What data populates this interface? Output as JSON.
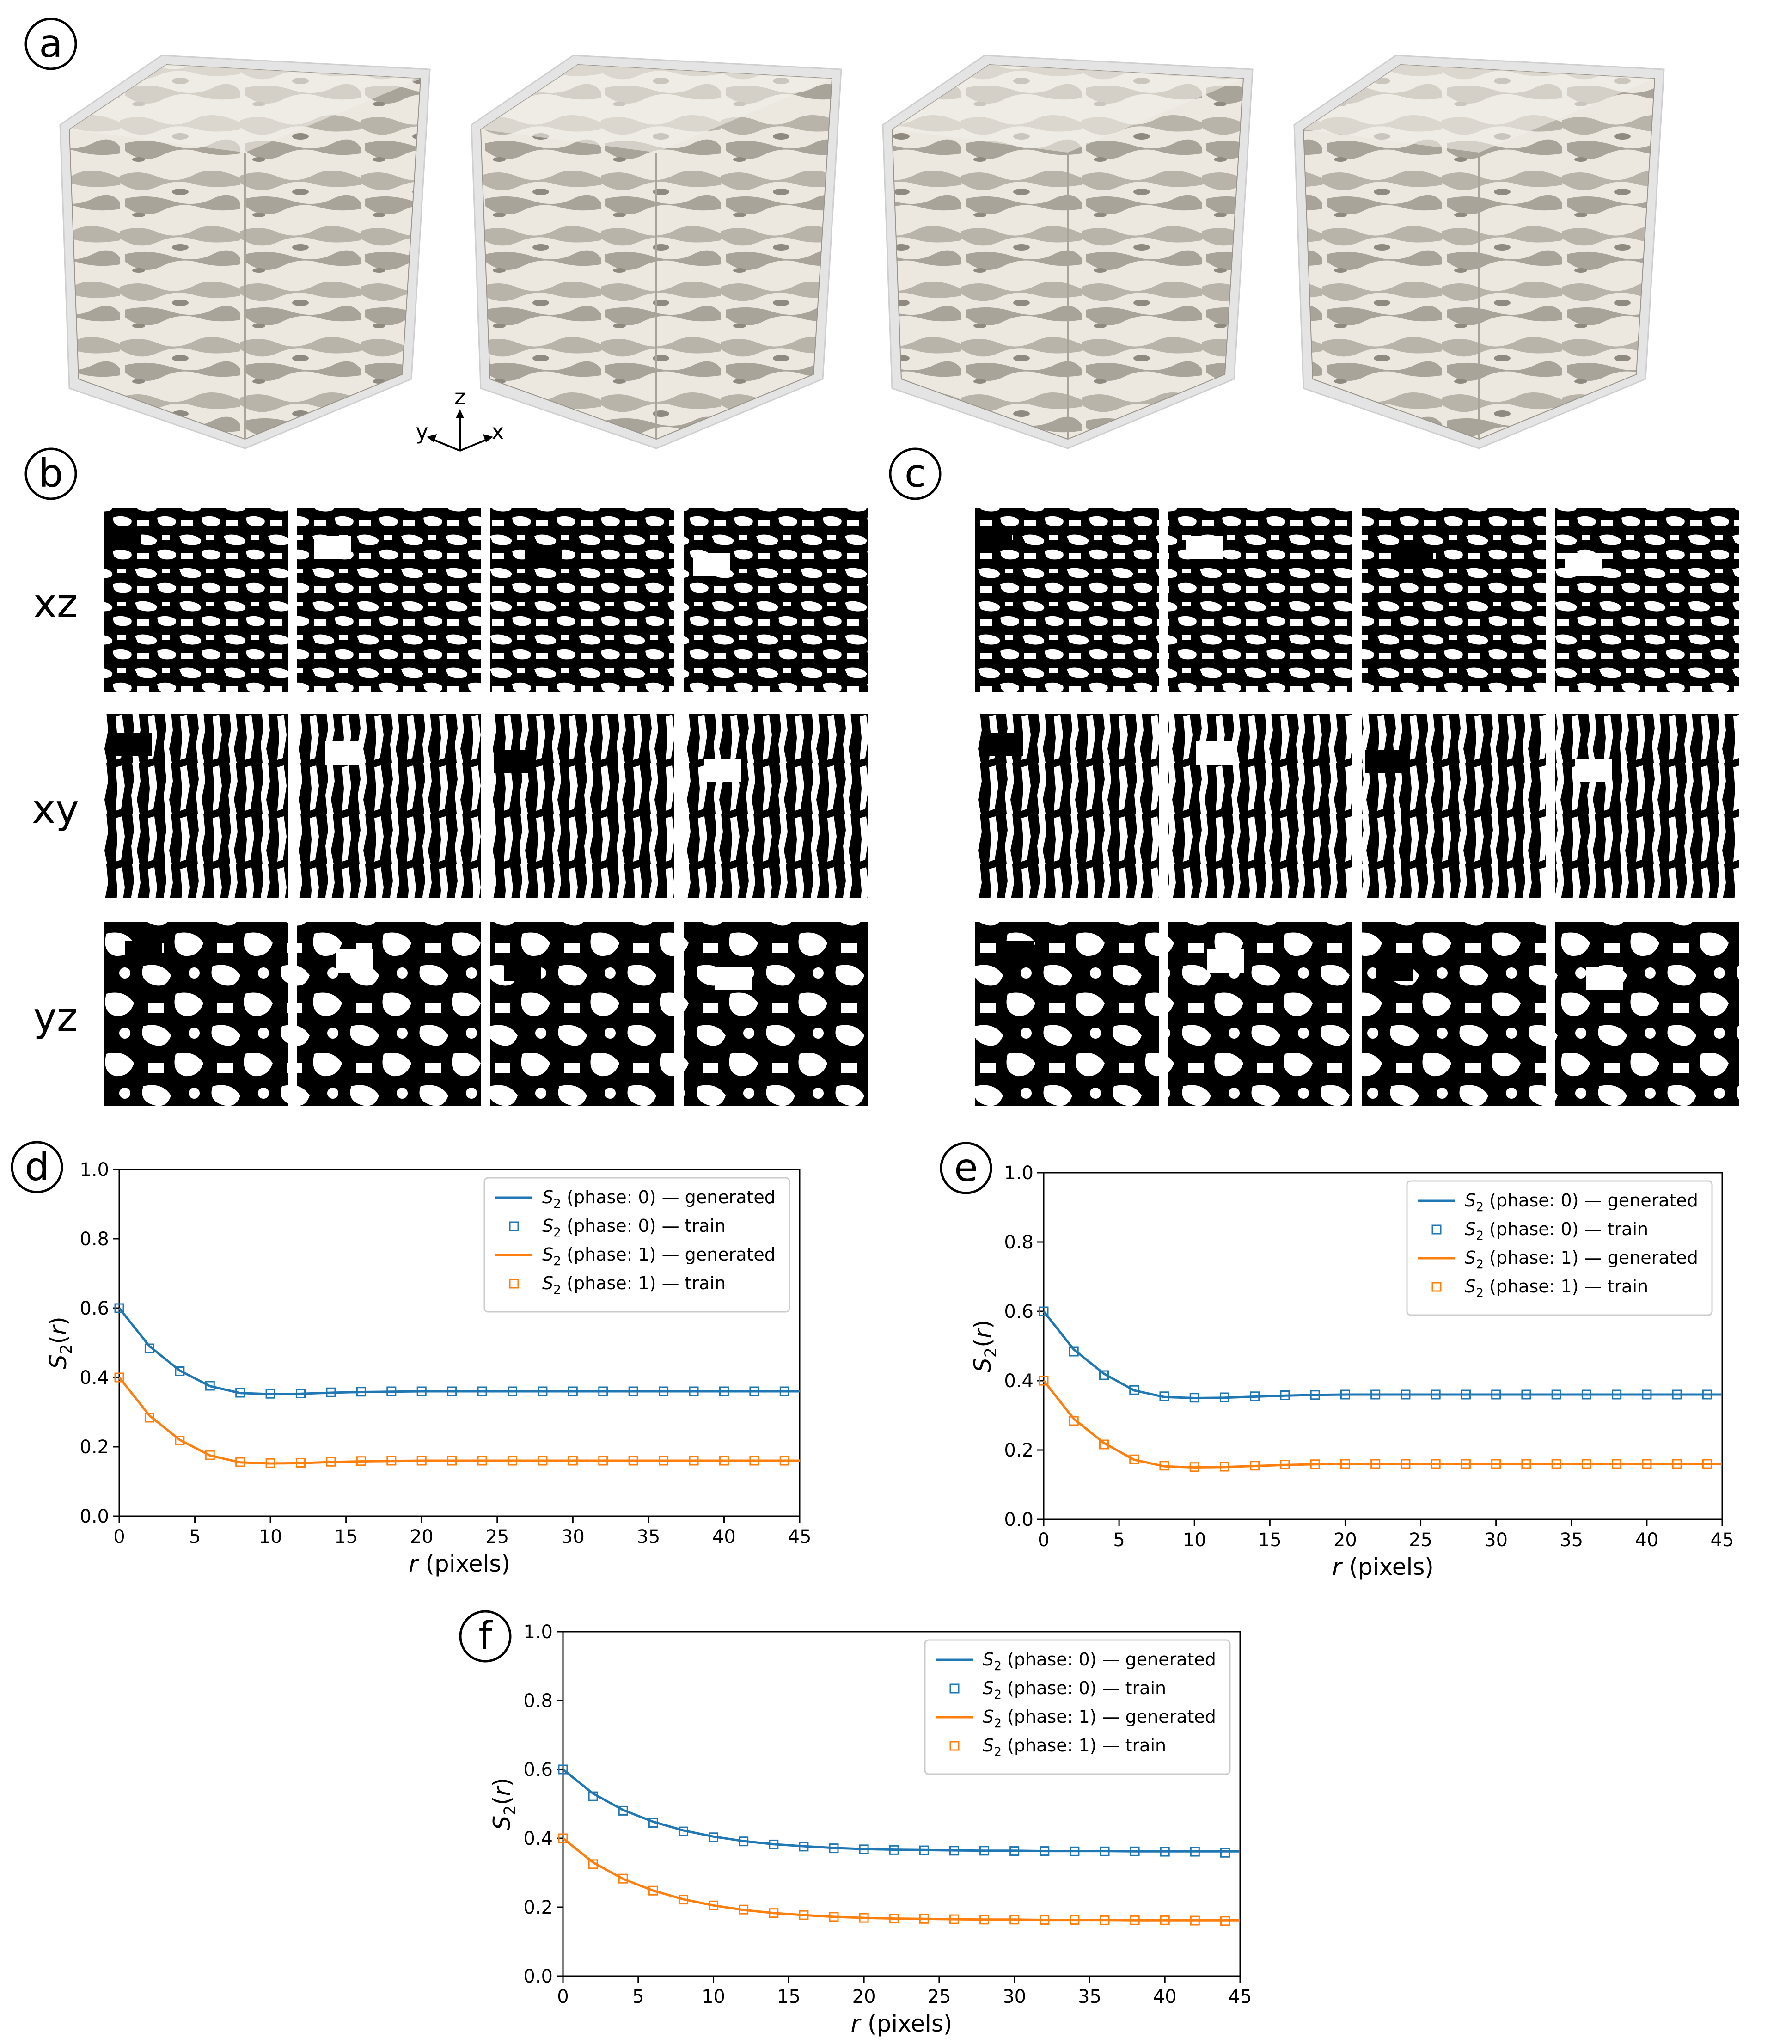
{
  "panel_labels": [
    "a",
    "b",
    "c",
    "d",
    "e",
    "f"
  ],
  "orientation": {
    "y": "y",
    "z": "z",
    "x": "x"
  },
  "row_labels": [
    "xz",
    "xy",
    "yz"
  ],
  "colors": {
    "phase0": "#1f77b4",
    "phase1": "#ff7f0e",
    "solid": "#ece8e0",
    "solid_shadow": "#b9b4aa",
    "box": "#d3d3d3"
  },
  "chart_data": [
    {
      "panel": "d",
      "type": "line",
      "xlabel_var": "r",
      "xlabel_unit": " (pixels)",
      "ylabel": "S2(r)",
      "xlim": [
        0,
        45
      ],
      "ylim": [
        0,
        1.0
      ],
      "x_ticks": [
        "0",
        "5",
        "10",
        "15",
        "20",
        "25",
        "30",
        "35",
        "40",
        "45"
      ],
      "y_ticks": [
        "0.0",
        "0.2",
        "0.4",
        "0.6",
        "0.8",
        "1.0"
      ],
      "legend_position": "top-right",
      "legend": [
        "S2 (phase: 0) — generated",
        "S2 (phase: 0) — train",
        "S2 (phase: 1) — generated",
        "S2 (phase: 1) — train"
      ],
      "series": [
        {
          "name": "S2 (phase: 0) — generated",
          "style": "line",
          "color": "#1f77b4",
          "x": [
            0,
            2,
            4,
            6,
            8,
            10,
            12,
            14,
            16,
            18,
            20,
            22,
            24,
            26,
            28,
            30,
            32,
            34,
            36,
            38,
            40,
            42,
            44,
            45
          ],
          "y": [
            0.6,
            0.49,
            0.42,
            0.375,
            0.355,
            0.352,
            0.353,
            0.356,
            0.358,
            0.359,
            0.36,
            0.36,
            0.36,
            0.36,
            0.36,
            0.36,
            0.36,
            0.36,
            0.36,
            0.36,
            0.36,
            0.36,
            0.36,
            0.36
          ]
        },
        {
          "name": "S2 (phase: 0) — train",
          "style": "marker",
          "color": "#1f77b4",
          "x": [
            0,
            2,
            4,
            6,
            8,
            10,
            12,
            14,
            16,
            18,
            20,
            22,
            24,
            26,
            28,
            30,
            32,
            34,
            36,
            38,
            40,
            42,
            44
          ],
          "y": [
            0.6,
            0.484,
            0.418,
            0.376,
            0.356,
            0.353,
            0.354,
            0.357,
            0.359,
            0.36,
            0.36,
            0.36,
            0.36,
            0.36,
            0.36,
            0.36,
            0.36,
            0.36,
            0.36,
            0.36,
            0.36,
            0.36,
            0.36
          ]
        },
        {
          "name": "S2 (phase: 1) — generated",
          "style": "line",
          "color": "#ff7f0e",
          "x": [
            0,
            2,
            4,
            6,
            8,
            10,
            12,
            14,
            16,
            18,
            20,
            22,
            24,
            26,
            28,
            30,
            32,
            34,
            36,
            38,
            40,
            42,
            44,
            45
          ],
          "y": [
            0.4,
            0.29,
            0.22,
            0.175,
            0.155,
            0.152,
            0.153,
            0.156,
            0.158,
            0.159,
            0.16,
            0.16,
            0.16,
            0.16,
            0.16,
            0.16,
            0.16,
            0.16,
            0.16,
            0.16,
            0.16,
            0.16,
            0.16,
            0.16
          ]
        },
        {
          "name": "S2 (phase: 1) — train",
          "style": "marker",
          "color": "#ff7f0e",
          "x": [
            0,
            2,
            4,
            6,
            8,
            10,
            12,
            14,
            16,
            18,
            20,
            22,
            24,
            26,
            28,
            30,
            32,
            34,
            36,
            38,
            40,
            42,
            44
          ],
          "y": [
            0.4,
            0.284,
            0.218,
            0.176,
            0.156,
            0.153,
            0.154,
            0.157,
            0.159,
            0.16,
            0.16,
            0.16,
            0.16,
            0.16,
            0.16,
            0.16,
            0.16,
            0.16,
            0.16,
            0.16,
            0.16,
            0.16,
            0.16
          ]
        }
      ]
    },
    {
      "panel": "e",
      "type": "line",
      "xlabel_var": "r",
      "xlabel_unit": " (pixels)",
      "ylabel": "S2(r)",
      "xlim": [
        0,
        45
      ],
      "ylim": [
        0,
        1.0
      ],
      "x_ticks": [
        "0",
        "5",
        "10",
        "15",
        "20",
        "25",
        "30",
        "35",
        "40",
        "45"
      ],
      "y_ticks": [
        "0.0",
        "0.2",
        "0.4",
        "0.6",
        "0.8",
        "1.0"
      ],
      "legend_position": "top-right",
      "legend": [
        "S2 (phase: 0) — generated",
        "S2 (phase: 0) — train",
        "S2 (phase: 1) — generated",
        "S2 (phase: 1) — train"
      ],
      "series": [
        {
          "name": "S2 (phase: 0) — generated",
          "style": "line",
          "color": "#1f77b4",
          "x": [
            0,
            2,
            4,
            6,
            8,
            10,
            12,
            14,
            16,
            18,
            20,
            22,
            24,
            26,
            28,
            30,
            32,
            34,
            36,
            38,
            40,
            42,
            44,
            45
          ],
          "y": [
            0.6,
            0.49,
            0.42,
            0.372,
            0.353,
            0.35,
            0.351,
            0.354,
            0.357,
            0.359,
            0.36,
            0.36,
            0.36,
            0.36,
            0.36,
            0.36,
            0.36,
            0.36,
            0.36,
            0.36,
            0.36,
            0.36,
            0.36,
            0.36
          ]
        },
        {
          "name": "S2 (phase: 0) — train",
          "style": "marker",
          "color": "#1f77b4",
          "x": [
            0,
            2,
            4,
            6,
            8,
            10,
            12,
            14,
            16,
            18,
            20,
            22,
            24,
            26,
            28,
            30,
            32,
            34,
            36,
            38,
            40,
            42,
            44
          ],
          "y": [
            0.6,
            0.484,
            0.416,
            0.373,
            0.355,
            0.351,
            0.352,
            0.355,
            0.358,
            0.359,
            0.36,
            0.36,
            0.36,
            0.36,
            0.36,
            0.36,
            0.36,
            0.36,
            0.36,
            0.36,
            0.36,
            0.36,
            0.36
          ]
        },
        {
          "name": "S2 (phase: 1) — generated",
          "style": "line",
          "color": "#ff7f0e",
          "x": [
            0,
            2,
            4,
            6,
            8,
            10,
            12,
            14,
            16,
            18,
            20,
            22,
            24,
            26,
            28,
            30,
            32,
            34,
            36,
            38,
            40,
            42,
            44,
            45
          ],
          "y": [
            0.4,
            0.29,
            0.22,
            0.172,
            0.153,
            0.15,
            0.151,
            0.154,
            0.157,
            0.159,
            0.16,
            0.16,
            0.16,
            0.16,
            0.16,
            0.16,
            0.16,
            0.16,
            0.16,
            0.16,
            0.16,
            0.16,
            0.16,
            0.16
          ]
        },
        {
          "name": "S2 (phase: 1) — train",
          "style": "marker",
          "color": "#ff7f0e",
          "x": [
            0,
            2,
            4,
            6,
            8,
            10,
            12,
            14,
            16,
            18,
            20,
            22,
            24,
            26,
            28,
            30,
            32,
            34,
            36,
            38,
            40,
            42,
            44
          ],
          "y": [
            0.4,
            0.284,
            0.216,
            0.173,
            0.155,
            0.151,
            0.152,
            0.155,
            0.158,
            0.159,
            0.16,
            0.16,
            0.16,
            0.16,
            0.16,
            0.16,
            0.16,
            0.16,
            0.16,
            0.16,
            0.16,
            0.16,
            0.16
          ]
        }
      ]
    },
    {
      "panel": "f",
      "type": "line",
      "xlabel_var": "r",
      "xlabel_unit": " (pixels)",
      "ylabel": "S2(r)",
      "xlim": [
        0,
        45
      ],
      "ylim": [
        0,
        1.0
      ],
      "x_ticks": [
        "0",
        "5",
        "10",
        "15",
        "20",
        "25",
        "30",
        "35",
        "40",
        "45"
      ],
      "y_ticks": [
        "0.0",
        "0.2",
        "0.4",
        "0.6",
        "0.8",
        "1.0"
      ],
      "legend_position": "top-right",
      "legend": [
        "S2 (phase: 0) — generated",
        "S2 (phase: 0) — train",
        "S2 (phase: 1) — generated",
        "S2 (phase: 1) — train"
      ],
      "series": [
        {
          "name": "S2 (phase: 0) — generated",
          "style": "line",
          "color": "#1f77b4",
          "x": [
            0,
            2,
            4,
            6,
            8,
            10,
            12,
            14,
            16,
            18,
            20,
            22,
            24,
            26,
            28,
            30,
            32,
            34,
            36,
            38,
            40,
            42,
            44,
            45
          ],
          "y": [
            0.6,
            0.53,
            0.482,
            0.448,
            0.423,
            0.405,
            0.392,
            0.383,
            0.377,
            0.372,
            0.369,
            0.367,
            0.366,
            0.365,
            0.364,
            0.364,
            0.363,
            0.363,
            0.363,
            0.362,
            0.362,
            0.362,
            0.362,
            0.362
          ]
        },
        {
          "name": "S2 (phase: 0) — train",
          "style": "marker",
          "color": "#1f77b4",
          "x": [
            0,
            2,
            4,
            6,
            8,
            10,
            12,
            14,
            16,
            18,
            20,
            22,
            24,
            26,
            28,
            30,
            32,
            34,
            36,
            38,
            40,
            42,
            44
          ],
          "y": [
            0.6,
            0.522,
            0.48,
            0.445,
            0.42,
            0.403,
            0.391,
            0.382,
            0.376,
            0.371,
            0.368,
            0.366,
            0.365,
            0.364,
            0.364,
            0.363,
            0.363,
            0.362,
            0.362,
            0.362,
            0.361,
            0.361,
            0.358
          ]
        },
        {
          "name": "S2 (phase: 1) — generated",
          "style": "line",
          "color": "#ff7f0e",
          "x": [
            0,
            2,
            4,
            6,
            8,
            10,
            12,
            14,
            16,
            18,
            20,
            22,
            24,
            26,
            28,
            30,
            32,
            34,
            36,
            38,
            40,
            42,
            44,
            45
          ],
          "y": [
            0.4,
            0.33,
            0.282,
            0.248,
            0.223,
            0.205,
            0.192,
            0.183,
            0.177,
            0.172,
            0.169,
            0.167,
            0.166,
            0.165,
            0.164,
            0.164,
            0.163,
            0.163,
            0.163,
            0.162,
            0.162,
            0.162,
            0.162,
            0.162
          ]
        },
        {
          "name": "S2 (phase: 1) — train",
          "style": "marker",
          "color": "#ff7f0e",
          "x": [
            0,
            2,
            4,
            6,
            8,
            10,
            12,
            14,
            16,
            18,
            20,
            22,
            24,
            26,
            28,
            30,
            32,
            34,
            36,
            38,
            40,
            42,
            44
          ],
          "y": [
            0.4,
            0.325,
            0.283,
            0.248,
            0.222,
            0.205,
            0.193,
            0.183,
            0.177,
            0.172,
            0.169,
            0.167,
            0.166,
            0.165,
            0.164,
            0.164,
            0.163,
            0.163,
            0.162,
            0.162,
            0.162,
            0.161,
            0.16
          ]
        }
      ]
    }
  ]
}
